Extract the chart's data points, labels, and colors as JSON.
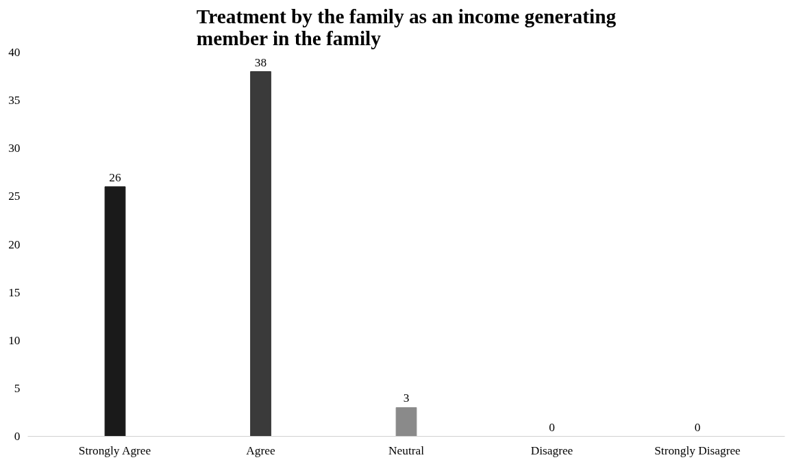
{
  "chart_data": {
    "type": "bar",
    "title": "Treatment by the family as an income generating member in the family",
    "categories": [
      "Strongly Agree",
      "Agree",
      "Neutral",
      "Disagree",
      "Strongly Disagree"
    ],
    "values": [
      26,
      38,
      3,
      0,
      0
    ],
    "colors": [
      "#1a1a1a",
      "#3a3a3a",
      "#8a8a8a",
      "#8a8a8a",
      "#8a8a8a"
    ],
    "ylim": [
      0,
      40
    ],
    "yticks": [
      0,
      5,
      10,
      15,
      20,
      25,
      30,
      35,
      40
    ],
    "grid": false,
    "data_labels": true
  }
}
